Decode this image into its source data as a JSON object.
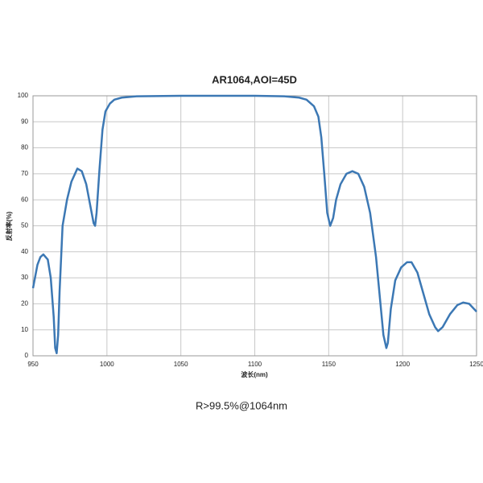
{
  "chart_data": {
    "type": "line",
    "title": "AR1064,AOI=45D",
    "x_label": "波长(nm)",
    "y_label": "反射率(%)",
    "annotation": "R>99.5%@1064nm",
    "x": [
      950,
      953,
      955,
      957,
      960,
      962,
      964,
      965,
      966,
      967,
      968,
      970,
      973,
      976,
      980,
      983,
      986,
      989,
      991,
      992,
      993,
      995,
      997,
      999,
      1002,
      1005,
      1010,
      1020,
      1050,
      1100,
      1120,
      1130,
      1135,
      1140,
      1143,
      1145,
      1147,
      1149,
      1151,
      1153,
      1155,
      1158,
      1162,
      1166,
      1170,
      1174,
      1178,
      1182,
      1185,
      1187,
      1189,
      1190,
      1192,
      1195,
      1199,
      1203,
      1206,
      1210,
      1214,
      1218,
      1222,
      1224,
      1227,
      1232,
      1237,
      1241,
      1245,
      1250
    ],
    "series": [
      {
        "color": "#3c78b4",
        "values": [
          26,
          35,
          38,
          39,
          37,
          30,
          15,
          3,
          1,
          8,
          25,
          50,
          60,
          67,
          72,
          71,
          66,
          57,
          51,
          50,
          55,
          72,
          87,
          94,
          97,
          98.5,
          99.3,
          99.8,
          100,
          100,
          99.8,
          99.3,
          98.5,
          96,
          92,
          84,
          70,
          55,
          50,
          53,
          60,
          66,
          70,
          71,
          70,
          65,
          55,
          38,
          20,
          8,
          3,
          5,
          18,
          29,
          34,
          36,
          36,
          32,
          24,
          16,
          11,
          9.5,
          11,
          16,
          19.5,
          20.5,
          20,
          17
        ]
      }
    ],
    "xlim": [
      950,
      1250
    ],
    "ylim": [
      0,
      100
    ],
    "xticks": [
      950,
      1000,
      1050,
      1100,
      1150,
      1200,
      1250
    ],
    "yticks": [
      0,
      10,
      20,
      30,
      40,
      50,
      60,
      70,
      80,
      90,
      100
    ],
    "grid": true
  }
}
